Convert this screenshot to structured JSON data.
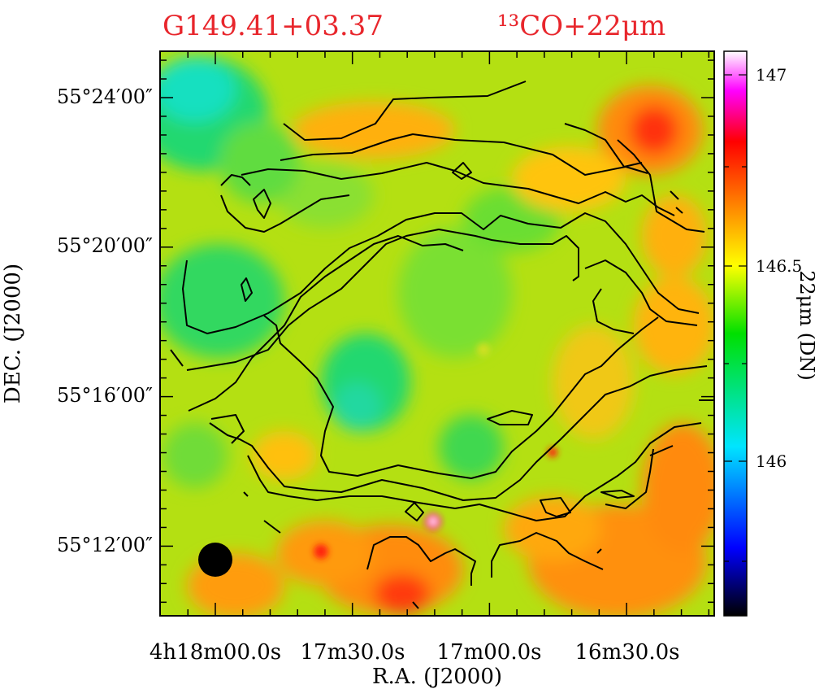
{
  "chart_data": {
    "type": "heatmap",
    "title_left": "G149.41+03.37",
    "title_right": "¹³CO+22μm",
    "xlabel": "R.A.  (J2000)",
    "ylabel": "DEC.  (J2000)",
    "colorbar_label": "22μm  (DN)",
    "x_tick_labels": [
      "4h18m00.0s",
      "17m30.0s",
      "17m00.0s",
      "16m30.0s"
    ],
    "x_tick_values_sec": [
      0,
      30,
      60,
      90
    ],
    "y_tick_labels": [
      "55°24′00″",
      "55°20′00″",
      "55°16′00″",
      "55°12′00″"
    ],
    "y_tick_values_arcmin": [
      24,
      20,
      16,
      12
    ],
    "xlim_sec_offset": [
      -9,
      103
    ],
    "ylim_arcmin": [
      10.2,
      25.0
    ],
    "colorbar_ticks": [
      146,
      146.5,
      147
    ],
    "colorbar_range": [
      145.3,
      147.2
    ],
    "colormap": [
      "#000000",
      "#0000ff",
      "#00e5ff",
      "#00e000",
      "#ffff00",
      "#ff7f00",
      "#ff0000",
      "#ff00ff",
      "#ffffff"
    ],
    "contour_color": "#000000",
    "beam": "filled-circle-bottom-left",
    "hotspots": [
      {
        "ra_sec": 3,
        "dec_arcmin": 24.4,
        "value": 146.0
      },
      {
        "ra_sec": 52,
        "dec_arcmin": 13.0,
        "value": 146.1
      },
      {
        "ra_sec": 36,
        "dec_arcmin": 16.4,
        "value": 146.1
      },
      {
        "ra_sec": 58,
        "dec_arcmin": 14.8,
        "value": 146.2
      },
      {
        "ra_sec": 28,
        "dec_arcmin": 19.0,
        "value": 146.2
      },
      {
        "ra_sec": 88,
        "dec_arcmin": 23.5,
        "value": 146.65
      },
      {
        "ra_sec": 40,
        "dec_arcmin": 11.0,
        "value": 146.6
      },
      {
        "ra_sec": 12,
        "dec_arcmin": 11.8,
        "value": 146.6
      },
      {
        "ra_sec": 77,
        "dec_arcmin": 11.5,
        "value": 146.55
      },
      {
        "ra_sec": 95,
        "dec_arcmin": 13.5,
        "value": 146.5
      },
      {
        "ra_sec": 49,
        "dec_arcmin": 12.5,
        "value": 146.9
      }
    ]
  }
}
